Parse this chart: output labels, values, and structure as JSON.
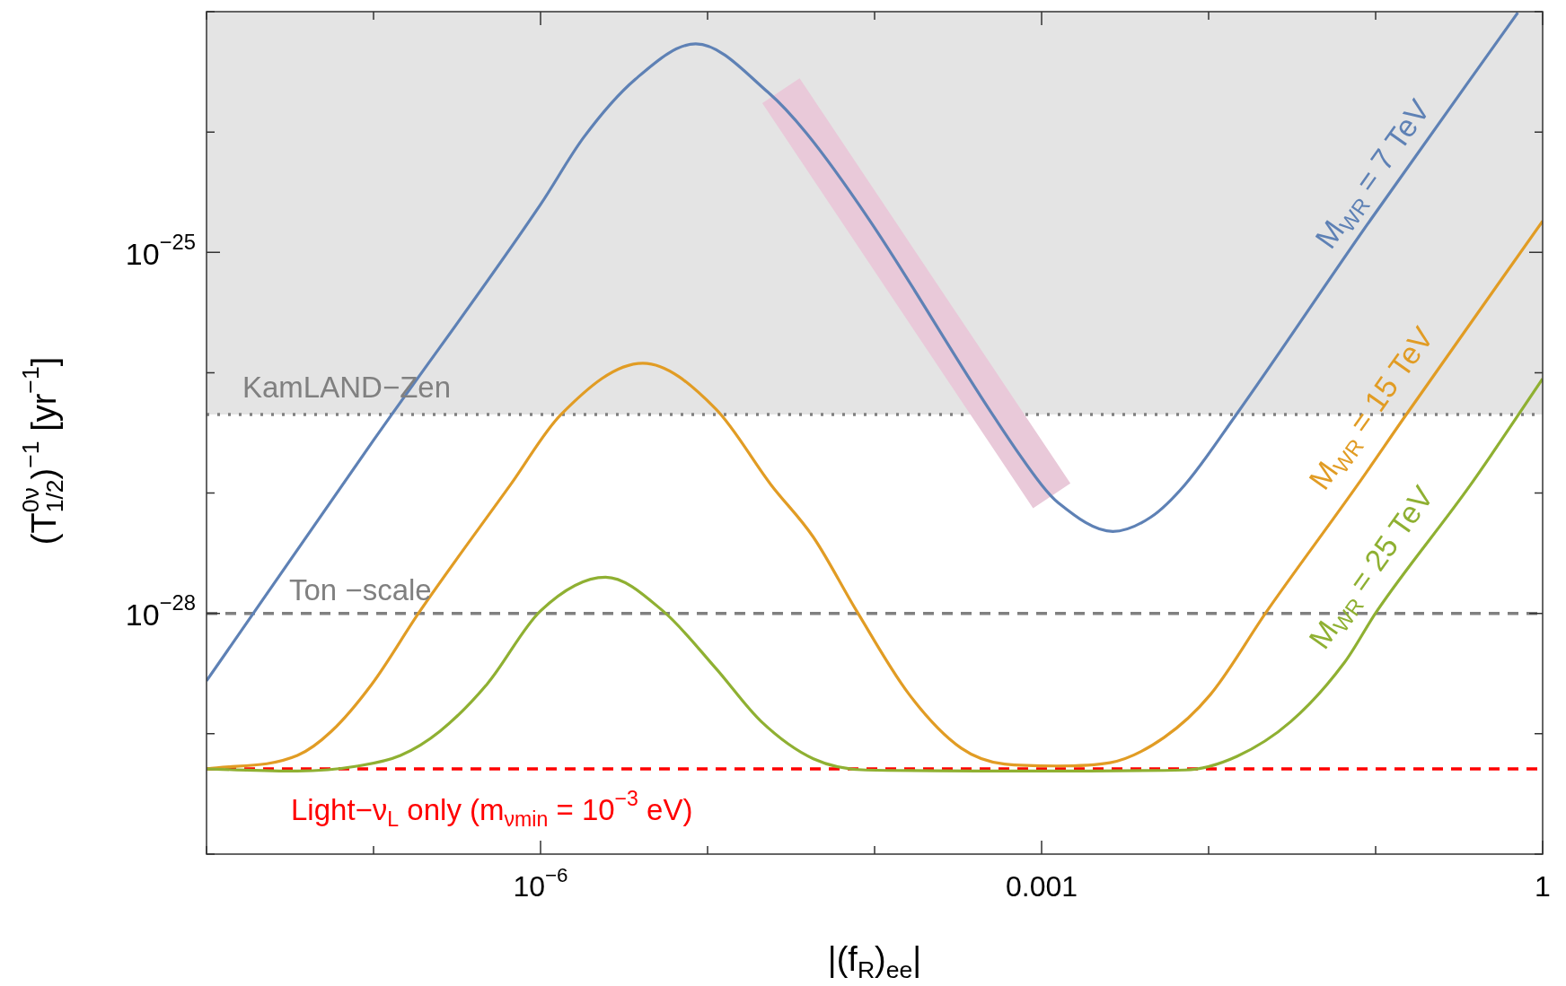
{
  "chart_data": {
    "type": "line",
    "xlabel": "|(f$_{R}$)$_{ee}$|",
    "ylabel": "(T$^{0ν}$$_{1/2}$)$^{−1}$ [yr$^{−1}$]",
    "log": "xy",
    "marker": "none",
    "legend": false,
    "xlim": [
      1e-08,
      1
    ],
    "ylim": [
      1e-30,
      1e-23
    ],
    "xticks": [
      {
        "value": 1e-08,
        "label": null
      },
      {
        "value": 1e-07,
        "label": null
      },
      {
        "value": 1e-06,
        "label": "10$^{−6}$"
      },
      {
        "value": 1e-05,
        "label": null
      },
      {
        "value": 0.0001,
        "label": null
      },
      0.001,
      {
        "value": 0.01,
        "label": null
      },
      {
        "value": 0.1,
        "label": null
      },
      1
    ],
    "yticks": [
      {
        "value": 1e-30,
        "label": null
      },
      {
        "value": 1e-29,
        "label": null
      },
      {
        "value": 1e-28,
        "label": "10$^{−28}$"
      },
      {
        "value": 1e-27,
        "label": null
      },
      {
        "value": 1e-26,
        "label": null
      },
      {
        "value": 1e-25,
        "label": "10$^{−25}$"
      },
      {
        "value": 1e-24,
        "label": null
      },
      {
        "value": 1e-23,
        "label": null
      }
    ],
    "bands": [
      {
        "axis": "y",
        "from": 4.5e-27,
        "to": 1e-23,
        "color": "#e4e4e4"
      }
    ],
    "ref_lines": [
      {
        "axis": "y",
        "value": 4.5e-27,
        "label": "KamLAND−Zen",
        "color": "#808080",
        "line_style": "dotted"
      },
      {
        "axis": "y",
        "value": 1e-28,
        "label": "Ton −scale",
        "color": "#808080",
        "line_style": "dashed"
      },
      {
        "axis": "y",
        "value": 5.1e-30,
        "color": "#ff0000",
        "line_style": "dashed"
      }
    ],
    "annotations": [
      "Light−ν$_{L}$ only (m$_{νmin}$ = 10$^{−3}$ eV)"
    ],
    "series": [
      {
        "color": "#e9c9d9",
        "x": [
          2.75e-05,
          0.00115
        ],
        "values": [
          2.2e-24,
          9.5e-28
        ]
      },
      {
        "name": "M$_{WR}$ = 7 TeV",
        "color": "#5e81b5",
        "x": [
          1e-08,
          1e-07,
          1e-06,
          1.82e-06,
          3.7e-06,
          8.5e-06,
          2.3e-05,
          3.9e-05,
          9.3e-05,
          0.00051,
          0.001,
          0.00126,
          0.00267,
          0.0045,
          0.0072,
          0.0145,
          0.089,
          0.71
        ],
        "values": [
          2.75e-29,
          2.75e-27,
          2.5e-25,
          9.1e-25,
          2.75e-24,
          5.4e-24,
          2.14e-24,
          9.8e-25,
          1.86e-25,
          4.47e-27,
          1.17e-27,
          8.3e-28,
          4.8e-28,
          6.3e-28,
          1.17e-27,
          4.4e-27,
          1.7e-25,
          9.8e-24
        ]
      },
      {
        "name": "M$_{WR}$ = 15 TeV",
        "color": "#e19c24",
        "x": [
          1e-08,
          3.5e-08,
          5.6e-08,
          9.8e-08,
          1.9e-07,
          6.6e-07,
          1.32e-06,
          4.1e-06,
          1.12e-05,
          2.4e-05,
          4.3e-05,
          7.8e-05,
          0.000162,
          0.00033,
          0.0006,
          0.00123,
          0.00257,
          0.0054,
          0.0102,
          0.0224,
          0.078,
          0.151,
          1
        ],
        "values": [
          5.1e-30,
          6.6e-30,
          1.05e-29,
          2.6e-29,
          1.05e-28,
          1.17e-27,
          4.47e-27,
          1.2e-26,
          5e-27,
          1.17e-27,
          4.3e-28,
          1.05e-28,
          2.1e-29,
          7.6e-30,
          5.6e-30,
          5.4e-30,
          5.75e-30,
          9.3e-30,
          2.1e-29,
          1.05e-28,
          1.17e-27,
          4.4e-27,
          1.82e-25
        ]
      },
      {
        "name": "M$_{WR}$ = 25 TeV",
        "color": "#8fb032",
        "x": [
          1e-08,
          3.5e-08,
          8.1e-08,
          1.45e-07,
          2.5e-07,
          4.8e-07,
          1e-06,
          2.45e-06,
          5.4e-06,
          1.12e-05,
          2.1e-05,
          4.3e-05,
          8.9e-05,
          0.00079,
          0.0072,
          0.0148,
          0.031,
          0.065,
          0.102,
          0.37,
          1
        ],
        "values": [
          5.1e-30,
          4.9e-30,
          5.4e-30,
          6.6e-30,
          1.05e-29,
          2.6e-29,
          1.05e-28,
          2e-28,
          1.05e-28,
          3.5e-29,
          1.26e-29,
          6.2e-30,
          5e-30,
          4.9e-30,
          5e-30,
          6.5e-30,
          1.26e-29,
          3.9e-29,
          1.05e-28,
          1.17e-27,
          8.9e-27
        ]
      }
    ]
  }
}
